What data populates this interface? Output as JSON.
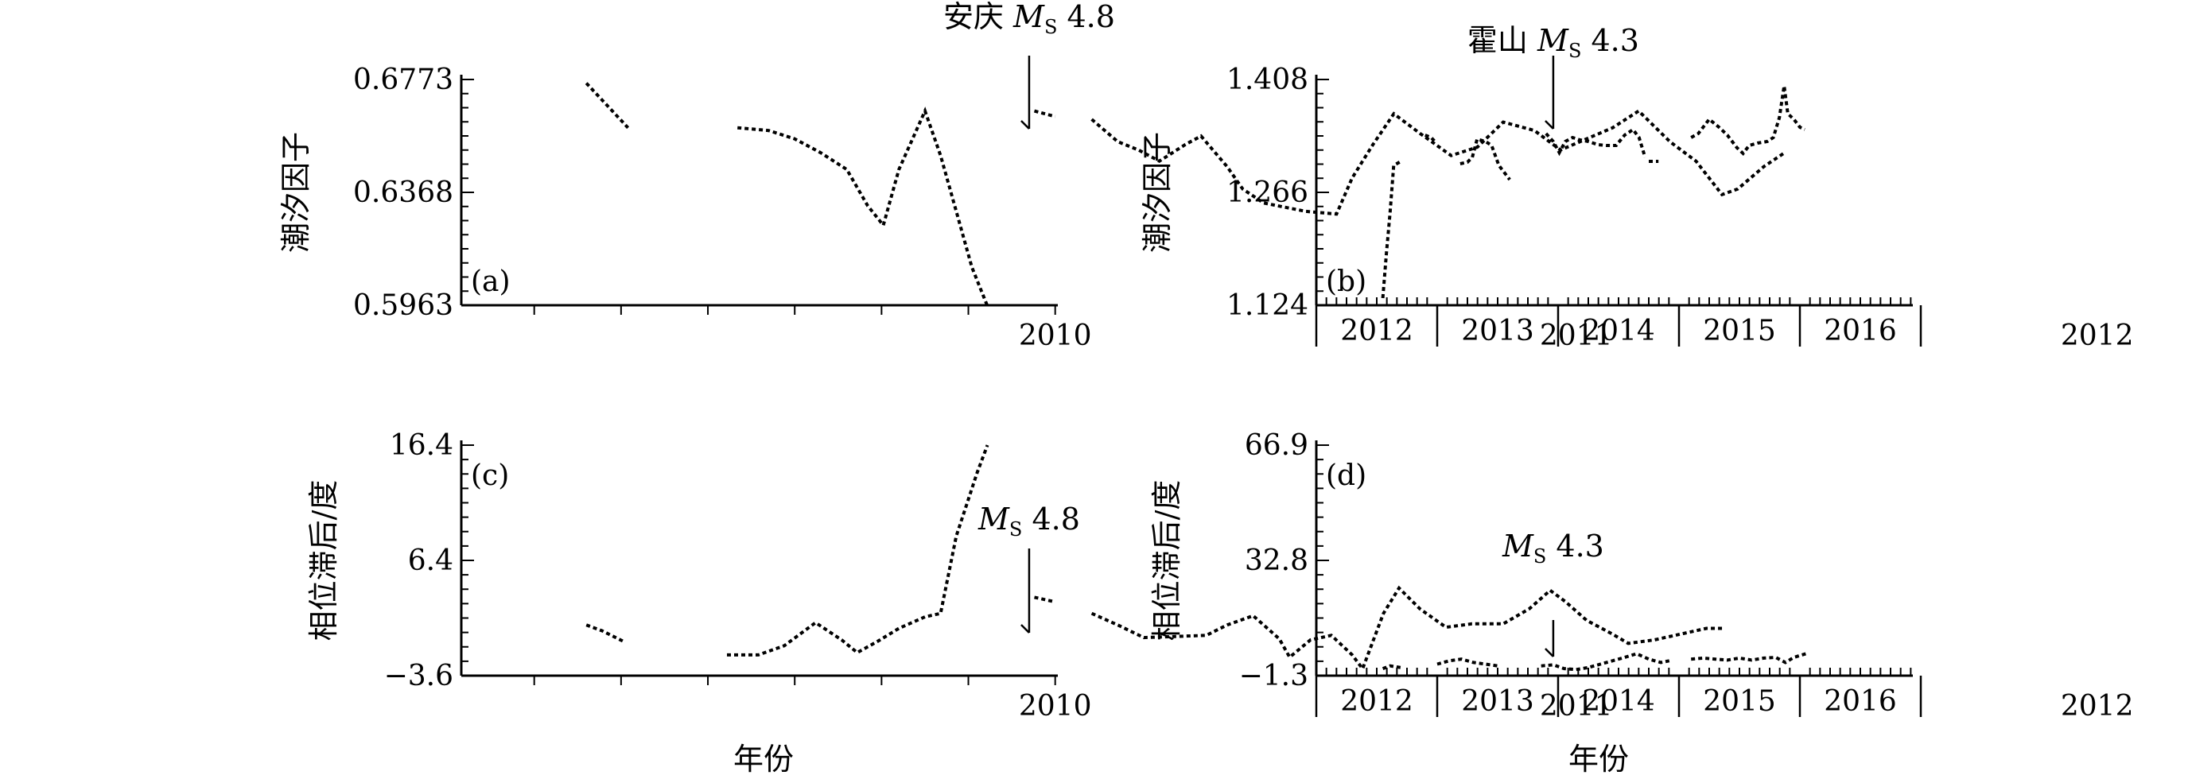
{
  "x_axis_label": "年份",
  "chart_data": [
    {
      "id": "a",
      "type": "line",
      "panel_label": "(a)",
      "ylabel": "潮汐因子",
      "ylim": [
        0.5963,
        0.6773
      ],
      "yticks": [
        "0.6773",
        "0.6368",
        "0.5963"
      ],
      "year_labels": [
        "2010",
        "2011",
        "2012"
      ],
      "annotation": {
        "prefix": "安庆 ",
        "m": "M",
        "s": "S",
        "value": " 4.8",
        "date": "2010.45"
      },
      "segments": [
        [
          [
            2009.6,
            0.676
          ],
          [
            2009.68,
            0.66
          ]
        ],
        [
          [
            2009.89,
            0.66
          ],
          [
            2009.95,
            0.659
          ],
          [
            2010.0,
            0.656
          ],
          [
            2010.05,
            0.651
          ],
          [
            2010.1,
            0.645
          ],
          [
            2010.14,
            0.632
          ],
          [
            2010.17,
            0.625
          ],
          [
            2010.2,
            0.645
          ],
          [
            2010.25,
            0.666
          ],
          [
            2010.28,
            0.65
          ],
          [
            2010.31,
            0.63
          ],
          [
            2010.34,
            0.61
          ],
          [
            2010.37,
            0.596
          ]
        ],
        [
          [
            2010.46,
            0.666
          ],
          [
            2010.5,
            0.664
          ]
        ],
        [
          [
            2010.57,
            0.663
          ],
          [
            2010.62,
            0.655
          ],
          [
            2010.66,
            0.652
          ],
          [
            2010.7,
            0.648
          ],
          [
            2010.75,
            0.654
          ],
          [
            2010.78,
            0.657
          ],
          [
            2010.83,
            0.646
          ],
          [
            2010.86,
            0.638
          ],
          [
            2010.9,
            0.633
          ],
          [
            2010.98,
            0.63
          ],
          [
            2011.04,
            0.629
          ],
          [
            2011.07,
            0.642
          ],
          [
            2011.11,
            0.654
          ],
          [
            2011.15,
            0.665
          ],
          [
            2011.2,
            0.658
          ],
          [
            2011.26,
            0.65
          ],
          [
            2011.31,
            0.653
          ],
          [
            2011.36,
            0.662
          ],
          [
            2011.42,
            0.659
          ],
          [
            2011.47,
            0.652
          ],
          [
            2011.52,
            0.656
          ],
          [
            2011.57,
            0.66
          ],
          [
            2011.62,
            0.666
          ],
          [
            2011.68,
            0.655
          ],
          [
            2011.73,
            0.648
          ],
          [
            2011.78,
            0.636
          ],
          [
            2011.81,
            0.638
          ],
          [
            2011.86,
            0.646
          ],
          [
            2011.9,
            0.651
          ]
        ]
      ]
    },
    {
      "id": "b",
      "type": "line",
      "panel_label": "(b)",
      "ylabel": "潮汐因子",
      "ylim": [
        1.124,
        1.408
      ],
      "yticks": [
        "1.408",
        "1.266",
        "1.124"
      ],
      "year_labels": [
        "2012",
        "2013",
        "2014",
        "2015",
        "2016"
      ],
      "annotation": {
        "prefix": "霍山 ",
        "m": "M",
        "s": "S",
        "value": " 4.3",
        "date": "2013.96"
      },
      "segments": [
        [
          [
            2012.55,
            1.133
          ],
          [
            2012.58,
            1.19
          ],
          [
            2012.61,
            1.24
          ],
          [
            2012.64,
            1.3
          ],
          [
            2012.7,
            1.305
          ]
        ],
        [
          [
            2012.9,
            1.338
          ],
          [
            2012.95,
            1.335
          ],
          [
            2012.98,
            1.33
          ]
        ],
        [
          [
            2013.19,
            1.302
          ],
          [
            2013.25,
            1.304
          ],
          [
            2013.29,
            1.31
          ],
          [
            2013.33,
            1.333
          ],
          [
            2013.4,
            1.33
          ],
          [
            2013.45,
            1.325
          ],
          [
            2013.51,
            1.3
          ],
          [
            2013.56,
            1.29
          ],
          [
            2013.6,
            1.282
          ]
        ],
        [
          [
            2013.9,
            1.34
          ],
          [
            2013.96,
            1.33
          ],
          [
            2014.01,
            1.316
          ],
          [
            2014.06,
            1.33
          ],
          [
            2014.12,
            1.335
          ],
          [
            2014.18,
            1.332
          ],
          [
            2014.25,
            1.33
          ],
          [
            2014.33,
            1.326
          ],
          [
            2014.4,
            1.325
          ],
          [
            2014.48,
            1.325
          ],
          [
            2014.55,
            1.338
          ],
          [
            2014.62,
            1.345
          ],
          [
            2014.67,
            1.335
          ],
          [
            2014.72,
            1.31
          ]
        ],
        [
          [
            2014.75,
            1.305
          ],
          [
            2014.83,
            1.305
          ]
        ],
        [
          [
            2015.1,
            1.335
          ],
          [
            2015.16,
            1.34
          ],
          [
            2015.25,
            1.358
          ],
          [
            2015.33,
            1.348
          ],
          [
            2015.4,
            1.338
          ],
          [
            2015.48,
            1.322
          ],
          [
            2015.53,
            1.315
          ],
          [
            2015.58,
            1.325
          ],
          [
            2015.65,
            1.328
          ],
          [
            2015.73,
            1.33
          ],
          [
            2015.78,
            1.335
          ],
          [
            2015.83,
            1.36
          ],
          [
            2015.87,
            1.4
          ],
          [
            2015.9,
            1.365
          ],
          [
            2015.95,
            1.358
          ],
          [
            2016.0,
            1.348
          ],
          [
            2016.04,
            1.345
          ]
        ]
      ]
    },
    {
      "id": "c",
      "type": "line",
      "panel_label": "(c)",
      "ylabel": "相位滞后/度",
      "ylim": [
        -3.6,
        16.4
      ],
      "yticks": [
        "16.4",
        "6.4",
        "−3.6"
      ],
      "year_labels": [
        "2010",
        "2011",
        "2012"
      ],
      "annotation": {
        "prefix": "",
        "m": "M",
        "s": "S",
        "value": " 4.8",
        "date": "2010.45"
      },
      "segments": [
        [
          [
            2009.6,
            0.8
          ],
          [
            2009.63,
            0.3
          ],
          [
            2009.67,
            -0.6
          ]
        ],
        [
          [
            2009.87,
            -1.8
          ],
          [
            2009.93,
            -1.8
          ],
          [
            2009.98,
            -1.0
          ],
          [
            2010.04,
            1.0
          ],
          [
            2010.09,
            -0.5
          ],
          [
            2010.12,
            -1.6
          ],
          [
            2010.16,
            -0.6
          ],
          [
            2010.2,
            0.5
          ],
          [
            2010.25,
            1.5
          ],
          [
            2010.28,
            1.8
          ],
          [
            2010.31,
            8.5
          ],
          [
            2010.35,
            14.0
          ],
          [
            2010.37,
            16.4
          ]
        ],
        [
          [
            2010.46,
            3.2
          ],
          [
            2010.5,
            2.8
          ]
        ],
        [
          [
            2010.57,
            1.8
          ],
          [
            2010.62,
            0.8
          ],
          [
            2010.67,
            -0.3
          ],
          [
            2010.73,
            -0.2
          ],
          [
            2010.79,
            -0.1
          ],
          [
            2010.83,
            0.8
          ],
          [
            2010.88,
            1.6
          ],
          [
            2010.93,
            -0.4
          ],
          [
            2010.95,
            -2.0
          ],
          [
            2010.99,
            -0.5
          ],
          [
            2011.03,
            -0.1
          ],
          [
            2011.07,
            -1.8
          ],
          [
            2011.09,
            -3.0
          ],
          [
            2011.13,
            1.8
          ],
          [
            2011.16,
            4.0
          ],
          [
            2011.2,
            2.2
          ],
          [
            2011.25,
            0.6
          ],
          [
            2011.3,
            0.9
          ],
          [
            2011.36,
            0.9
          ],
          [
            2011.41,
            2.2
          ],
          [
            2011.45,
            3.8
          ],
          [
            2011.48,
            2.8
          ],
          [
            2011.52,
            1.2
          ],
          [
            2011.57,
            0.0
          ],
          [
            2011.6,
            -0.8
          ],
          [
            2011.65,
            -0.5
          ],
          [
            2011.7,
            0.0
          ],
          [
            2011.75,
            0.5
          ],
          [
            2011.78,
            0.5
          ]
        ]
      ]
    },
    {
      "id": "d",
      "type": "line",
      "panel_label": "(d)",
      "ylabel": "相位滞后/度",
      "ylim": [
        -1.3,
        66.9
      ],
      "yticks": [
        "66.9",
        "32.8",
        "−1.3"
      ],
      "year_labels": [
        "2012",
        "2013",
        "2014",
        "2015",
        "2016"
      ],
      "annotation": {
        "prefix": "",
        "m": "M",
        "s": "S",
        "value": " 4.3",
        "date": "2013.96"
      },
      "segments": [
        [
          [
            2012.55,
            0.8
          ],
          [
            2012.61,
            1.6
          ],
          [
            2012.7,
            1.1
          ]
        ],
        [
          [
            2013.0,
            2.1
          ],
          [
            2013.1,
            3.1
          ],
          [
            2013.2,
            3.6
          ],
          [
            2013.3,
            2.6
          ],
          [
            2013.4,
            2.1
          ],
          [
            2013.5,
            1.6
          ]
        ],
        [
          [
            2013.86,
            1.6
          ],
          [
            2013.96,
            1.9
          ],
          [
            2014.05,
            0.8
          ],
          [
            2014.15,
            0.5
          ],
          [
            2014.25,
            1.1
          ],
          [
            2014.35,
            2.1
          ],
          [
            2014.45,
            3.1
          ],
          [
            2014.55,
            4.1
          ],
          [
            2014.65,
            5.2
          ],
          [
            2014.75,
            3.6
          ],
          [
            2014.85,
            2.6
          ],
          [
            2014.92,
            3.1
          ]
        ],
        [
          [
            2015.1,
            3.6
          ],
          [
            2015.2,
            3.9
          ],
          [
            2015.3,
            3.6
          ],
          [
            2015.4,
            3.3
          ],
          [
            2015.5,
            3.9
          ],
          [
            2015.6,
            3.3
          ],
          [
            2015.7,
            3.9
          ],
          [
            2015.8,
            4.1
          ],
          [
            2015.88,
            2.6
          ],
          [
            2015.95,
            4.1
          ],
          [
            2016.05,
            5.2
          ]
        ]
      ]
    }
  ]
}
